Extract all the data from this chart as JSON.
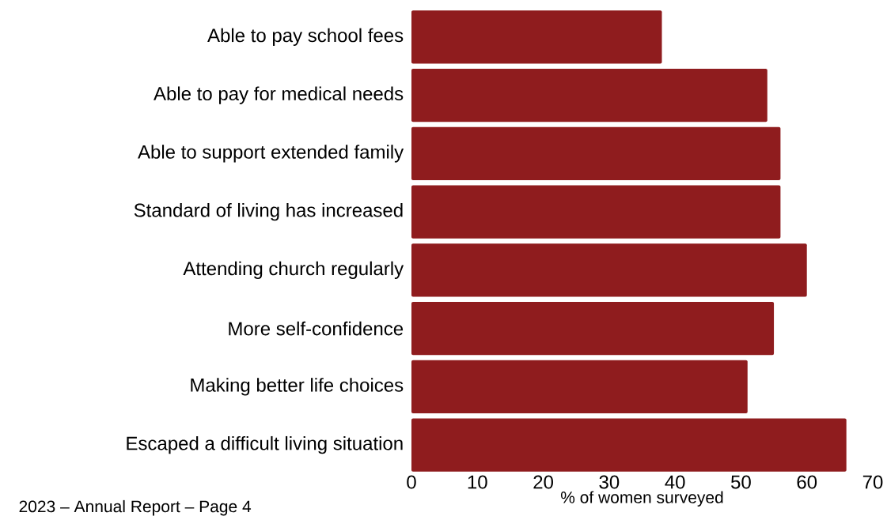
{
  "chart_data": {
    "type": "bar",
    "orientation": "horizontal",
    "categories": [
      "Able to pay school fees",
      "Able to pay for medical needs",
      "Able to support extended family",
      "Standard of living has increased",
      "Attending church regularly",
      "More self-confidence",
      "Making better life choices",
      "Escaped a difficult living situation"
    ],
    "values": [
      38,
      54,
      56,
      56,
      60,
      55,
      51,
      66
    ],
    "color": "#8f1c1e",
    "xlim": [
      0,
      70
    ],
    "xticks": [
      0,
      10,
      20,
      30,
      40,
      50,
      60,
      70
    ],
    "xlabel": "% of women surveyed",
    "annotations": [
      "2023 – Annual Report – Page 4"
    ]
  }
}
